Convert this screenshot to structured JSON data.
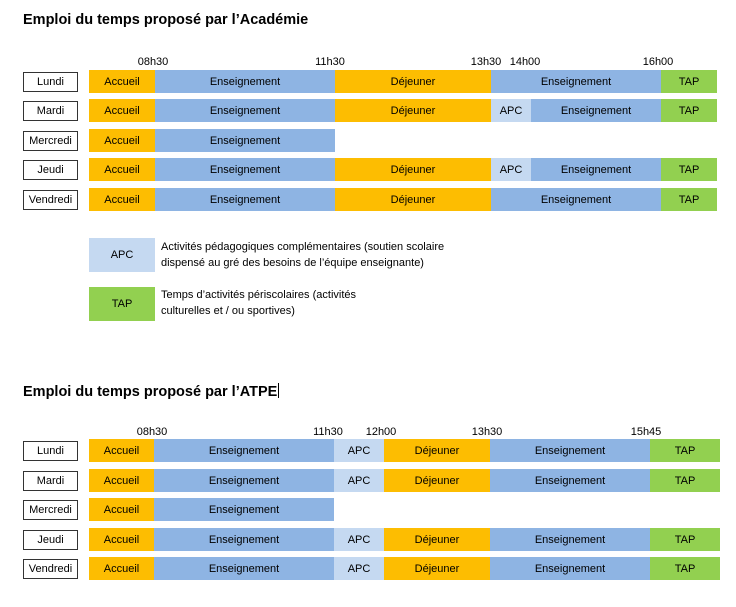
{
  "colors": {
    "accueil": "#fdbd01",
    "enseignement": "#8eb4e3",
    "dejeuner": "#fdbd01",
    "apc": "#c5d9f1",
    "tap": "#92d050"
  },
  "academie": {
    "title": "Emploi du temps proposé par l’Académie",
    "times": [
      "08h30",
      "11h30",
      "13h30",
      "14h00",
      "16h00"
    ],
    "days": [
      {
        "day": "Lundi",
        "segments": [
          "Accueil",
          "Enseignement",
          "Déjeuner",
          "Enseignement",
          "TAP"
        ]
      },
      {
        "day": "Mardi",
        "segments": [
          "Accueil",
          "Enseignement",
          "Déjeuner",
          "APC",
          "Enseignement",
          "TAP"
        ]
      },
      {
        "day": "Mercredi",
        "segments": [
          "Accueil",
          "Enseignement"
        ]
      },
      {
        "day": "Jeudi",
        "segments": [
          "Accueil",
          "Enseignement",
          "Déjeuner",
          "APC",
          "Enseignement",
          "TAP"
        ]
      },
      {
        "day": "Vendredi",
        "segments": [
          "Accueil",
          "Enseignement",
          "Déjeuner",
          "Enseignement",
          "TAP"
        ]
      }
    ]
  },
  "legend": {
    "apc": {
      "label": "APC",
      "text_line1": "Activités pédagogiques complémentaires (soutien scolaire",
      "text_line2": "dispensé au gré des besoins de l’équipe enseignante)"
    },
    "tap": {
      "label": "TAP",
      "text_line1": "Temps d’activités périscolaires (activités",
      "text_line2": "culturelles et / ou sportives)"
    }
  },
  "atpe": {
    "title": "Emploi du temps proposé par l’ATPE",
    "times": [
      "08h30",
      "11h30",
      "12h00",
      "13h30",
      "15h45"
    ],
    "days": [
      {
        "day": "Lundi",
        "segments": [
          "Accueil",
          "Enseignement",
          "APC",
          "Déjeuner",
          "Enseignement",
          "TAP"
        ]
      },
      {
        "day": "Mardi",
        "segments": [
          "Accueil",
          "Enseignement",
          "APC",
          "Déjeuner",
          "Enseignement",
          "TAP"
        ]
      },
      {
        "day": "Mercredi",
        "segments": [
          "Accueil",
          "Enseignement"
        ]
      },
      {
        "day": "Jeudi",
        "segments": [
          "Accueil",
          "Enseignement",
          "APC",
          "Déjeuner",
          "Enseignement",
          "TAP"
        ]
      },
      {
        "day": "Vendredi",
        "segments": [
          "Accueil",
          "Enseignement",
          "APC",
          "Déjeuner",
          "Enseignement",
          "TAP"
        ]
      }
    ]
  }
}
